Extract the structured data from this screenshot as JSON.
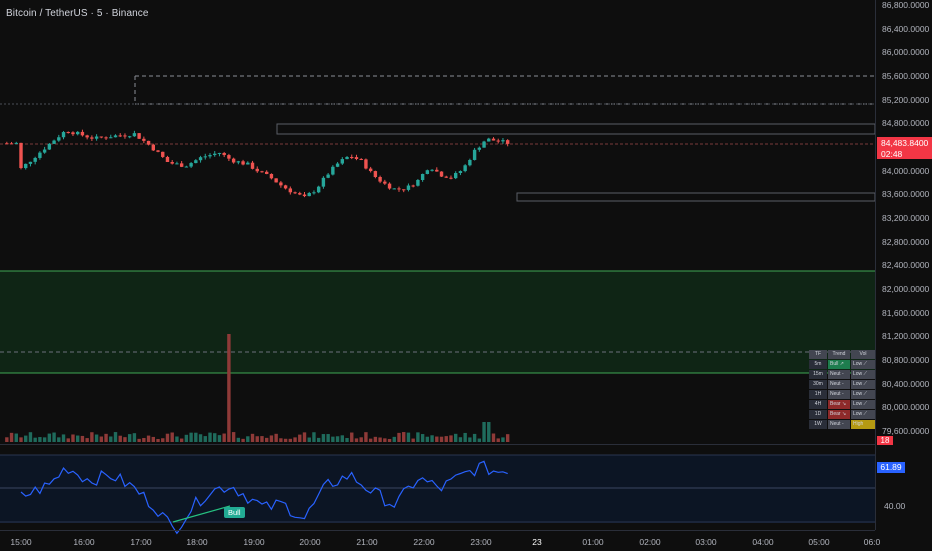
{
  "symbol": {
    "title": "Bitcoin / TetherUS · 5 · Binance"
  },
  "price_axis": [
    "86,800.0000",
    "86,400.0000",
    "86,000.0000",
    "85,600.0000",
    "85,200.0000",
    "84,800.0000",
    "84,000.0000",
    "83,600.0000",
    "83,200.0000",
    "82,800.0000",
    "82,400.0000",
    "82,000.0000",
    "81,600.0000",
    "81,200.0000",
    "80,800.0000",
    "80,400.0000",
    "80,000.0000",
    "79,600.0000"
  ],
  "last_price": {
    "value": "84,483.8400",
    "countdown": "02:48"
  },
  "volume_tag": "18",
  "rsi": {
    "value": "61.89",
    "axis_label": "40.00",
    "divergence_label": "Bull"
  },
  "time_axis": [
    "15:00",
    "16:00",
    "17:00",
    "18:00",
    "19:00",
    "20:00",
    "21:00",
    "22:00",
    "23:00",
    "23",
    "01:00",
    "02:00",
    "03:00",
    "04:00",
    "05:00",
    "06:0"
  ],
  "mtf_table": {
    "headers": [
      "TF",
      "Trend",
      "Vol"
    ],
    "rows": [
      {
        "tf": "5m",
        "trend": "Bull ↗",
        "vol": "Low ⟋"
      },
      {
        "tf": "15m",
        "trend": "Neut -",
        "vol": "Low ⟋"
      },
      {
        "tf": "30m",
        "trend": "Neut -",
        "vol": "Low ⟋"
      },
      {
        "tf": "1H",
        "trend": "Neut -",
        "vol": "Low ⟋"
      },
      {
        "tf": "4H",
        "trend": "Bear ↘",
        "vol": "Low ⟋"
      },
      {
        "tf": "1D",
        "trend": "Bear ↘",
        "vol": "Low ⟋"
      },
      {
        "tf": "1W",
        "trend": "Neut -",
        "vol": "High"
      }
    ]
  },
  "colors": {
    "bull": "#26a69a",
    "bear": "#ef5350",
    "bull_cell": "#1e7d4e",
    "bear_cell": "#8e2a2a",
    "neutral_cell": "#434651",
    "high_cell": "#b59a12",
    "rsi_line": "#2962ff",
    "zone_fill": "#0f2515",
    "zone_border": "#3fa654"
  },
  "chart_data": {
    "type": "candlestick",
    "symbol": "Bitcoin / TetherUS",
    "interval": "5",
    "exchange": "Binance",
    "last_price": 84483.84,
    "close_path": [
      [
        15.0,
        84050
      ],
      [
        15.3,
        84300
      ],
      [
        15.6,
        84550
      ],
      [
        15.8,
        84700
      ],
      [
        16.0,
        84640
      ],
      [
        16.3,
        84560
      ],
      [
        16.6,
        84600
      ],
      [
        17.0,
        84640
      ],
      [
        17.3,
        84420
      ],
      [
        17.6,
        84150
      ],
      [
        17.9,
        84100
      ],
      [
        18.2,
        84250
      ],
      [
        18.5,
        84320
      ],
      [
        18.7,
        84200
      ],
      [
        19.0,
        84120
      ],
      [
        19.2,
        84000
      ],
      [
        19.4,
        83900
      ],
      [
        19.6,
        83760
      ],
      [
        19.8,
        83650
      ],
      [
        20.0,
        83560
      ],
      [
        20.2,
        83700
      ],
      [
        20.4,
        83950
      ],
      [
        20.6,
        84150
      ],
      [
        20.8,
        84270
      ],
      [
        21.0,
        84180
      ],
      [
        21.2,
        83950
      ],
      [
        21.4,
        83800
      ],
      [
        21.6,
        83700
      ],
      [
        21.8,
        83720
      ],
      [
        22.0,
        83850
      ],
      [
        22.2,
        84100
      ],
      [
        22.4,
        83950
      ],
      [
        22.6,
        83900
      ],
      [
        22.8,
        84050
      ],
      [
        23.0,
        84350
      ],
      [
        23.2,
        84550
      ],
      [
        23.4,
        84520
      ],
      [
        23.6,
        84480
      ]
    ],
    "volume_spike": {
      "time": "18:40",
      "relative": "high"
    },
    "rsi_path": [
      [
        15.0,
        45
      ],
      [
        15.5,
        52
      ],
      [
        15.8,
        63
      ],
      [
        16.2,
        55
      ],
      [
        16.6,
        58
      ],
      [
        17.0,
        50
      ],
      [
        17.4,
        38
      ],
      [
        17.7,
        25
      ],
      [
        18.0,
        38
      ],
      [
        18.3,
        48
      ],
      [
        18.7,
        52
      ],
      [
        19.0,
        45
      ],
      [
        19.3,
        38
      ],
      [
        19.6,
        41
      ],
      [
        20.0,
        32
      ],
      [
        20.4,
        52
      ],
      [
        20.8,
        58
      ],
      [
        21.2,
        48
      ],
      [
        21.6,
        40
      ],
      [
        22.0,
        56
      ],
      [
        22.4,
        50
      ],
      [
        22.8,
        58
      ],
      [
        23.1,
        63
      ],
      [
        23.4,
        60
      ],
      [
        23.6,
        61.89
      ]
    ]
  }
}
